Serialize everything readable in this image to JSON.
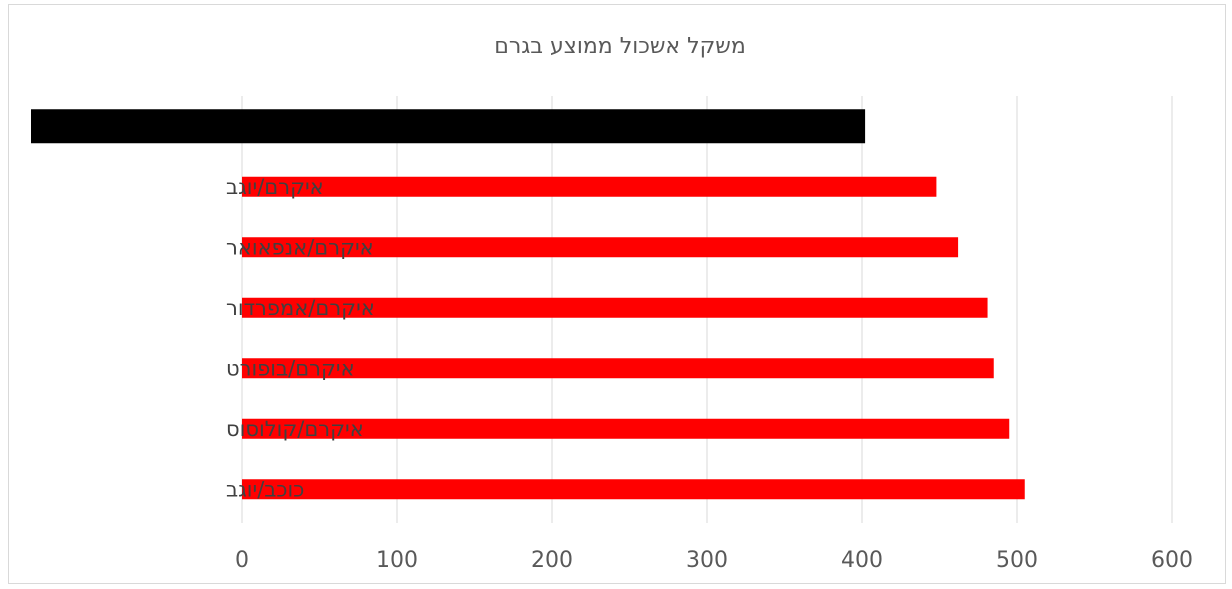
{
  "chart_data": {
    "type": "bar",
    "orientation": "horizontal",
    "title": "משקל אשכול ממוצע בגרם",
    "xlabel": "",
    "ylabel": "",
    "xlim": [
      0,
      600
    ],
    "xticks": [
      0,
      100,
      200,
      300,
      400,
      500,
      600
    ],
    "grid": true,
    "legend": "none",
    "categories": [
      "כוכב/יוגב",
      "איקרם/קולוסוס",
      "איקרם/בופורט",
      "איקרם/אמפרדור",
      "איקרם/אנפאואר",
      "איקרם/יוגב",
      ""
    ],
    "values": [
      505,
      495,
      485,
      481,
      462,
      448,
      402
    ],
    "colors": {
      "bar": "#ff0000",
      "highlight_bar": "#000000",
      "grid": "#d9d9d9",
      "axis_text": "#595959"
    }
  }
}
